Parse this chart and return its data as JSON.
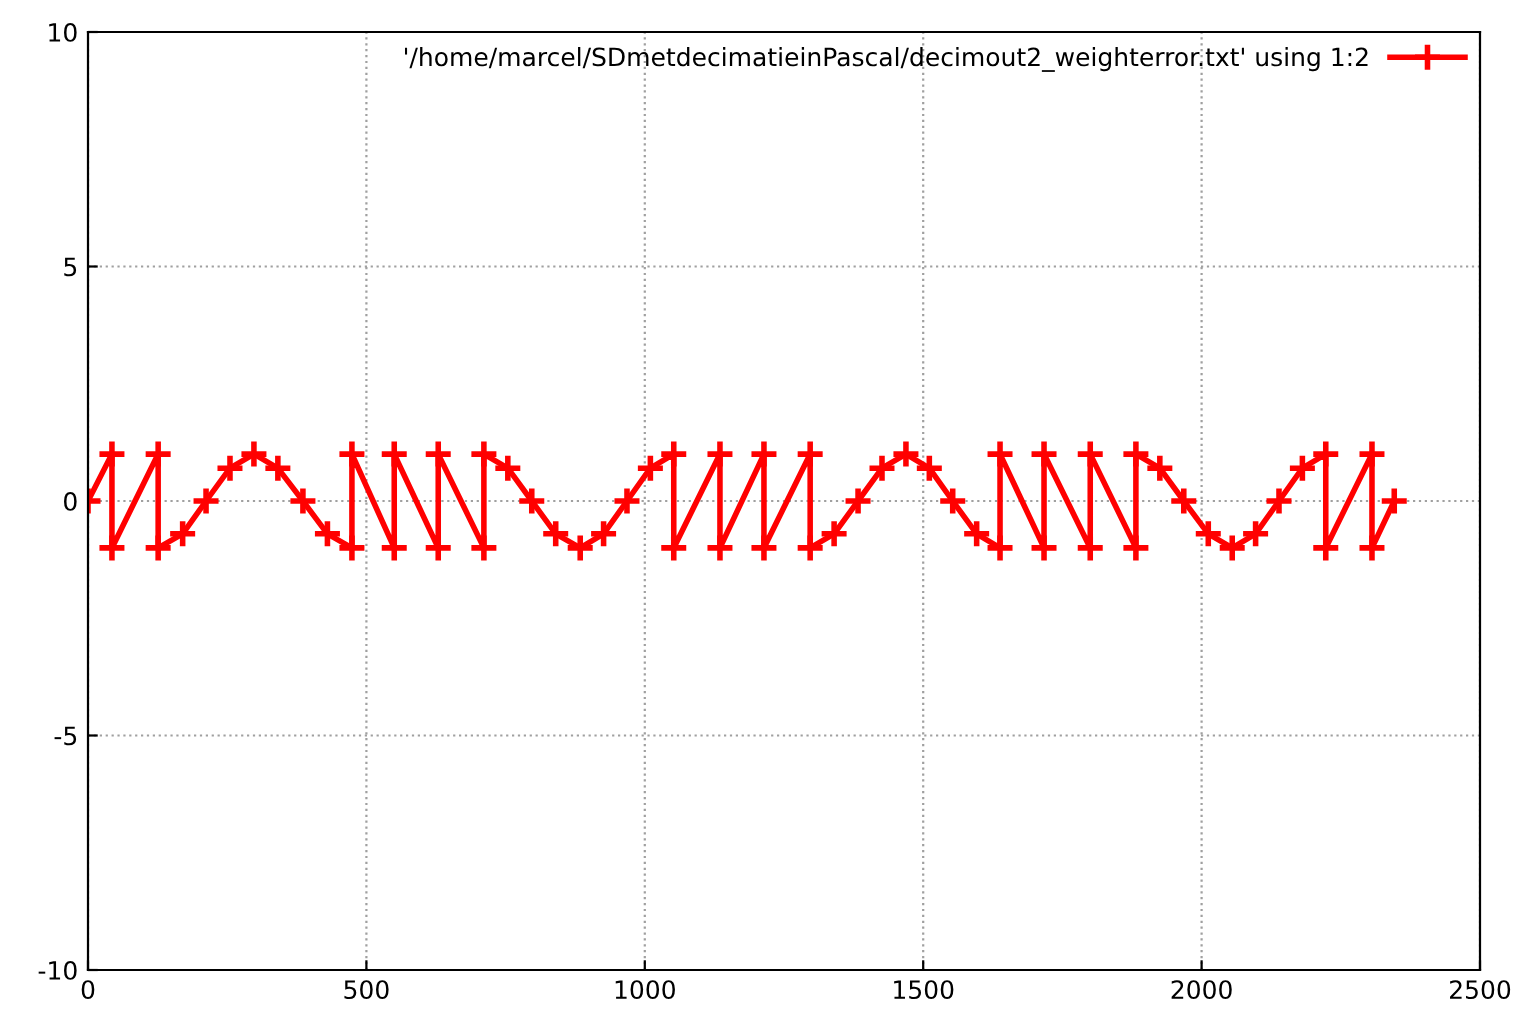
{
  "chart_data": {
    "type": "line",
    "xlim": [
      0,
      2500
    ],
    "ylim": [
      -10,
      10
    ],
    "xticks": [
      0,
      500,
      1000,
      1500,
      2000,
      2500
    ],
    "yticks": [
      -10,
      -5,
      0,
      5,
      10
    ],
    "grid": true,
    "legend": "top right",
    "marker": "cross",
    "line_style": "solid",
    "series": [
      {
        "name": "'/home/marcel/SDmetdecimatieinPascal/decimout2_weighterror.txt' using 1:2",
        "color": "#ff0000",
        "x": [
          0,
          43,
          43,
          126,
          126,
          170,
          212,
          255,
          298,
          341,
          386,
          430,
          474,
          474,
          550,
          550,
          629,
          629,
          711,
          711,
          754,
          797,
          840,
          884,
          926,
          968,
          1010,
          1052,
          1052,
          1135,
          1135,
          1214,
          1214,
          1297,
          1297,
          1340,
          1383,
          1426,
          1469,
          1511,
          1553,
          1596,
          1638,
          1638,
          1717,
          1717,
          1800,
          1800,
          1882,
          1882,
          1925,
          1968,
          2012,
          2055,
          2097,
          2139,
          2181,
          2223,
          2223,
          2306,
          2306,
          2346
        ],
        "values": [
          0,
          1,
          -1,
          1,
          -1,
          -0.7,
          0,
          0.7,
          1,
          0.7,
          0,
          -0.7,
          -1,
          1,
          -1,
          1,
          -1,
          1,
          -1,
          1,
          0.7,
          0,
          -0.7,
          -1,
          -0.7,
          0,
          0.7,
          1,
          -1,
          1,
          -1,
          1,
          -1,
          1,
          -1,
          -0.7,
          0,
          0.7,
          1,
          0.7,
          0,
          -0.7,
          -1,
          1,
          -1,
          1,
          -1,
          1,
          -1,
          1,
          0.7,
          0,
          -0.7,
          -1,
          -0.7,
          0,
          0.7,
          1,
          -1,
          1,
          -1,
          0
        ]
      }
    ]
  }
}
